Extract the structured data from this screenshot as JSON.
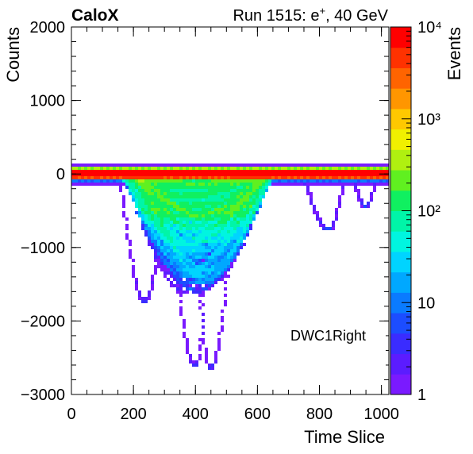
{
  "header": {
    "experiment": "CaloX",
    "run_info": "Run 1515: e",
    "run_sup": "+",
    "run_energy": ", 40 GeV"
  },
  "chart_data": {
    "type": "heatmap",
    "xlabel": "Time Slice",
    "ylabel": "Counts",
    "zlabel": "Events",
    "xlim": [
      0,
      1024
    ],
    "ylim": [
      -3000,
      2000
    ],
    "zlim": [
      1,
      10000
    ],
    "zscale": "log",
    "x_ticks": [
      0,
      200,
      400,
      600,
      800,
      1000
    ],
    "y_ticks": [
      -3000,
      -2000,
      -1000,
      0,
      1000,
      2000
    ],
    "z_ticks": [
      "1",
      "10",
      "10²",
      "10³",
      "10⁴"
    ],
    "annotation": "DWC1Right",
    "baseline": 0,
    "pulse_core": {
      "x_start": 180,
      "x_peak": 400,
      "x_end": 640,
      "depth": -1000
    },
    "outliers": [
      {
        "x_start": 150,
        "x_peak": 235,
        "x_end": 320,
        "depth": -1730
      },
      {
        "x_start": 300,
        "x_peak": 400,
        "x_end": 460,
        "depth": -2620
      },
      {
        "x_start": 380,
        "x_peak": 450,
        "x_end": 540,
        "depth": -2640
      },
      {
        "x_start": 740,
        "x_peak": 830,
        "x_end": 890,
        "depth": -760
      },
      {
        "x_start": 900,
        "x_peak": 950,
        "x_end": 990,
        "depth": -440
      }
    ],
    "palette": [
      "#7a1aff",
      "#5b1cff",
      "#3a2cff",
      "#1c4dff",
      "#0a7bff",
      "#00a8ff",
      "#00d4ff",
      "#00f5e0",
      "#00f5a8",
      "#10f060",
      "#60f020",
      "#b0f010",
      "#f0f000",
      "#ffc800",
      "#ff9600",
      "#ff6400",
      "#ff3200",
      "#ff0000"
    ]
  }
}
